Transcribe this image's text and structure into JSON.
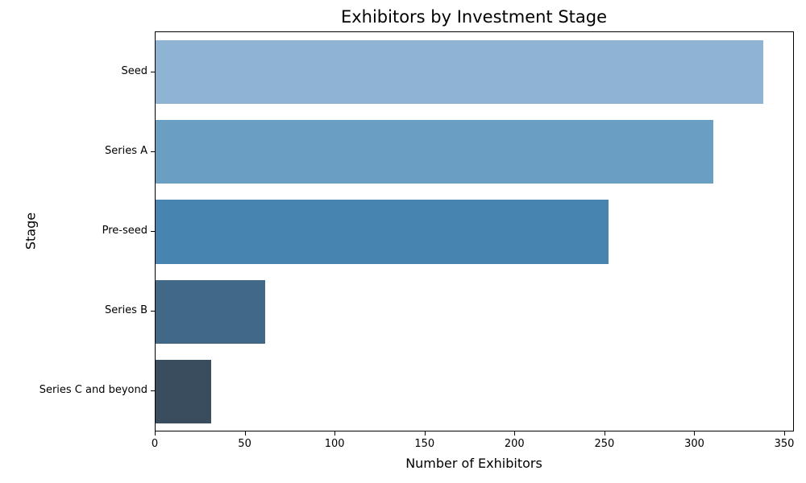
{
  "chart_data": {
    "type": "bar",
    "orientation": "horizontal",
    "title": "Exhibitors by Investment Stage",
    "xlabel": "Number of Exhibitors",
    "ylabel": "Stage",
    "categories": [
      "Seed",
      "Series A",
      "Pre-seed",
      "Series B",
      "Series C and beyond"
    ],
    "values": [
      338,
      310,
      252,
      61,
      31
    ],
    "bar_colors": [
      "#8fb3d2",
      "#6b9ec3",
      "#4884b0",
      "#426887",
      "#3a4d5e"
    ],
    "xticks": [
      0,
      50,
      100,
      150,
      200,
      250,
      300,
      350
    ],
    "xlim": [
      0,
      354.9
    ],
    "grid": false,
    "legend": null,
    "bar_rel_height": 0.8
  }
}
